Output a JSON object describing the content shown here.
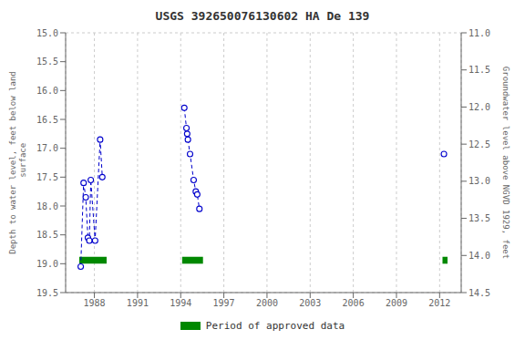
{
  "chart_data": {
    "type": "line",
    "title": "USGS 392650076130602 HA De 139",
    "ylabel": "Depth to water level, feet below land\n surface",
    "y2label": "Groundwater level above NGVD 1929, feet",
    "xlim": [
      1986.0,
      2013.5
    ],
    "xticks": [
      1988,
      1991,
      1994,
      1997,
      2000,
      2003,
      2006,
      2009,
      2012
    ],
    "ylim": [
      19.5,
      15.0
    ],
    "yticks": [
      {
        "value": 15.0,
        "label": "15.0"
      },
      15.5,
      {
        "value": 16.0,
        "label": "16.0"
      },
      16.5,
      {
        "value": 17.0,
        "label": "17.0"
      },
      17.5,
      {
        "value": 18.0,
        "label": "18.0"
      },
      18.5,
      {
        "value": 19.0,
        "label": "19.0"
      },
      19.5
    ],
    "y2lim": [
      14.5,
      11.0
    ],
    "y2ticks": [
      14.5,
      {
        "value": 14.0,
        "label": "14.0"
      },
      13.5,
      {
        "value": 13.0,
        "label": "13.0"
      },
      12.5,
      {
        "value": 12.0,
        "label": "12.0"
      },
      11.5,
      {
        "value": 11.0,
        "label": "11.0"
      }
    ],
    "grid": true,
    "legend": "bottom",
    "series": [
      {
        "color": "#0000CC",
        "line_style": "dashed",
        "marker": "circle",
        "x": [
          1987.05,
          1987.25,
          1987.4,
          1987.55,
          1987.65,
          1987.75,
          1988.05,
          1988.4,
          1988.55
        ],
        "values": [
          19.05,
          17.6,
          17.85,
          18.55,
          18.6,
          17.55,
          18.6,
          16.85,
          17.5
        ]
      },
      {
        "color": "#0000CC",
        "line_style": "dashed",
        "marker": "circle",
        "x": [
          1994.25,
          1994.4,
          1994.45,
          1994.5,
          1994.65,
          1994.9,
          1995.05,
          1995.15,
          1995.3
        ],
        "values": [
          16.3,
          16.65,
          16.75,
          16.85,
          17.1,
          17.55,
          17.75,
          17.8,
          18.05
        ]
      },
      {
        "color": "#0000CC",
        "line_style": "dashed",
        "marker": "circle",
        "x": [
          2012.3
        ],
        "values": [
          17.1
        ]
      }
    ],
    "spans": {
      "name": "Period of approved data",
      "color": "#008800",
      "x_ranges": [
        [
          1986.95,
          1988.85
        ],
        [
          1994.1,
          1995.55
        ],
        [
          2012.2,
          2012.55
        ]
      ],
      "y_base": 19.0,
      "height": 0.12
    }
  }
}
